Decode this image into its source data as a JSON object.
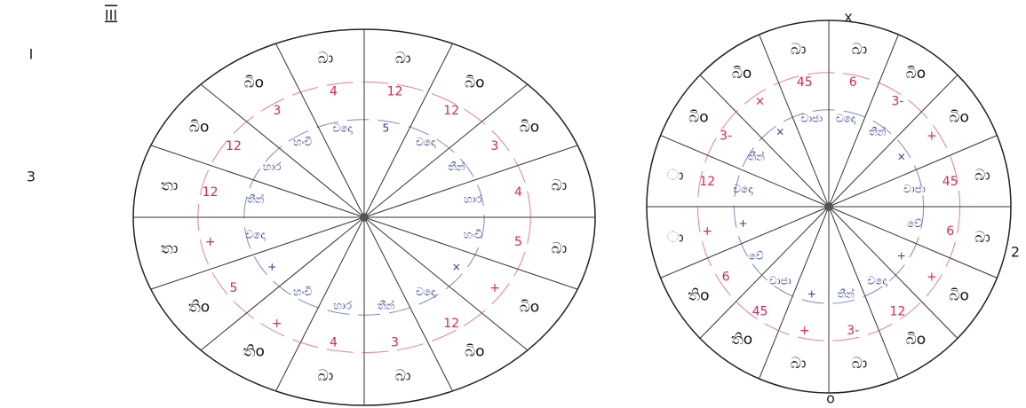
{
  "page_marks": {
    "roman": "III",
    "left_note": "I",
    "left_number": "3"
  },
  "left_wheel": {
    "sectors": [
      "බා",
      "බිo",
      "බිo",
      "බා",
      "බා",
      "බිo",
      "බිo",
      "බා",
      "බා",
      "තිo",
      "තිo",
      "තා",
      "තා",
      "බිo",
      "බිo",
      "බා"
    ],
    "outer_ring": [
      "12",
      "12",
      "3",
      "4",
      "5",
      "+",
      "12",
      "3",
      "4",
      "+",
      "5",
      "+",
      "12",
      "12",
      "3",
      "4"
    ],
    "inner_ring": [
      "5",
      "චදො",
      "තීන්",
      "හාර",
      "හංචි",
      "×",
      "චදො",
      "තීන්",
      "හාර",
      "හංචි",
      "+",
      "චදො",
      "තීන්",
      "හාර",
      "හංචි",
      "චදො"
    ]
  },
  "right_wheel": {
    "sectors": [
      "බා",
      "බිo",
      "බිo",
      "බා",
      "බා",
      "බිo",
      "බිo",
      "බා",
      "බා",
      "තිo",
      "තිo",
      "ා",
      "ා",
      "බිo",
      "බිo",
      "බා"
    ],
    "outer_ring": [
      "6",
      "3-",
      "+",
      "45",
      "6",
      "+",
      "12",
      "3-",
      "+",
      "45",
      "6",
      "+",
      "12",
      "3-",
      "×",
      "45"
    ],
    "inner_ring": [
      "චදො",
      "තීන්",
      "×",
      "වාජා",
      "වේ",
      "+",
      "චදො",
      "තීන්",
      "+",
      "වාජා",
      "වේ",
      "+",
      "චදො",
      "තීන්",
      "×",
      "වාජා"
    ]
  },
  "right_marks": {
    "top": "x",
    "right": "2",
    "bottom": "o"
  }
}
